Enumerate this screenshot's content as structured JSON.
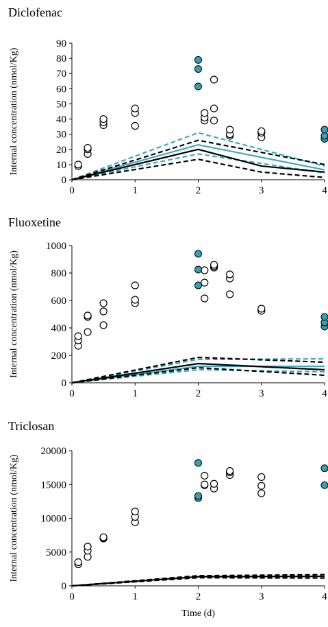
{
  "colors": {
    "accent": "#3fa9bd",
    "accent_fill": "#3a9fb4",
    "black": "#000000"
  },
  "chart_data": [
    {
      "type": "scatter",
      "title": "Diclofenac",
      "xlabel": "",
      "ylabel": "Internal  concentration  (nmol/Kg)",
      "xlim": [
        0,
        4
      ],
      "ylim": [
        0,
        90
      ],
      "xticks": [
        "0",
        "1",
        "2",
        "3",
        "4"
      ],
      "yticks": [
        "0",
        "10",
        "20",
        "30",
        "40",
        "50",
        "60",
        "70",
        "80",
        "90"
      ],
      "open_points": [
        [
          0.1,
          9
        ],
        [
          0.1,
          10
        ],
        [
          0.25,
          17
        ],
        [
          0.25,
          20
        ],
        [
          0.25,
          21
        ],
        [
          0.5,
          36
        ],
        [
          0.5,
          38
        ],
        [
          0.5,
          40
        ],
        [
          1,
          35.5
        ],
        [
          1,
          44
        ],
        [
          1,
          47
        ],
        [
          2.1,
          39
        ],
        [
          2.1,
          41
        ],
        [
          2.1,
          44
        ],
        [
          2.25,
          39
        ],
        [
          2.25,
          47
        ],
        [
          2.25,
          66
        ],
        [
          2.5,
          29
        ],
        [
          2.5,
          30
        ],
        [
          2.5,
          33
        ],
        [
          3,
          28
        ],
        [
          3,
          31
        ],
        [
          3,
          32
        ]
      ],
      "filled_points": [
        [
          2,
          61.5
        ],
        [
          2,
          73
        ],
        [
          2,
          79
        ],
        [
          4,
          27
        ],
        [
          4,
          29
        ],
        [
          4,
          33
        ]
      ],
      "lines": [
        {
          "color": "accent",
          "dashed": false,
          "x": [
            0,
            2,
            4
          ],
          "y": [
            0,
            23,
            6.5
          ]
        },
        {
          "color": "accent",
          "dashed": true,
          "x": [
            0,
            2,
            4
          ],
          "y": [
            0,
            31,
            9
          ]
        },
        {
          "color": "accent",
          "dashed": true,
          "x": [
            0,
            2,
            4
          ],
          "y": [
            0,
            17,
            4.5
          ]
        },
        {
          "color": "black",
          "dashed": false,
          "x": [
            0,
            2,
            3,
            4
          ],
          "y": [
            0,
            20,
            9,
            5
          ]
        },
        {
          "color": "black",
          "dashed": true,
          "x": [
            0,
            2,
            4
          ],
          "y": [
            0,
            26,
            10
          ]
        },
        {
          "color": "black",
          "dashed": true,
          "x": [
            0,
            2,
            3,
            4
          ],
          "y": [
            0,
            13.5,
            5,
            1.5
          ]
        }
      ]
    },
    {
      "type": "scatter",
      "title": "Fluoxetine",
      "xlabel": "",
      "ylabel": "Internal  concentration  (nmol/Kg)",
      "xlim": [
        0,
        4
      ],
      "ylim": [
        0,
        1000
      ],
      "xticks": [
        "0",
        "1",
        "2",
        "3",
        "4"
      ],
      "yticks": [
        "0",
        "200",
        "400",
        "600",
        "800",
        "1000"
      ],
      "open_points": [
        [
          0.1,
          270
        ],
        [
          0.1,
          310
        ],
        [
          0.1,
          340
        ],
        [
          0.25,
          370
        ],
        [
          0.25,
          480
        ],
        [
          0.25,
          490
        ],
        [
          0.5,
          420
        ],
        [
          0.5,
          520
        ],
        [
          0.5,
          580
        ],
        [
          1,
          580
        ],
        [
          1,
          605
        ],
        [
          1,
          710
        ],
        [
          2.1,
          615
        ],
        [
          2.1,
          730
        ],
        [
          2.1,
          820
        ],
        [
          2.25,
          840
        ],
        [
          2.25,
          850
        ],
        [
          2.25,
          860
        ],
        [
          2.5,
          645
        ],
        [
          2.5,
          760
        ],
        [
          2.5,
          790
        ],
        [
          3,
          525
        ],
        [
          3,
          540
        ]
      ],
      "filled_points": [
        [
          2,
          710
        ],
        [
          2,
          825
        ],
        [
          2,
          940
        ],
        [
          4,
          410
        ],
        [
          4,
          440
        ],
        [
          4,
          480
        ]
      ],
      "lines": [
        {
          "color": "accent",
          "dashed": false,
          "x": [
            0,
            2,
            4
          ],
          "y": [
            0,
            120,
            120
          ]
        },
        {
          "color": "accent",
          "dashed": true,
          "x": [
            0,
            2,
            4
          ],
          "y": [
            0,
            170,
            175
          ]
        },
        {
          "color": "accent",
          "dashed": true,
          "x": [
            0,
            2,
            4
          ],
          "y": [
            0,
            95,
            80
          ]
        },
        {
          "color": "black",
          "dashed": false,
          "x": [
            0,
            2,
            4
          ],
          "y": [
            0,
            140,
            95
          ]
        },
        {
          "color": "black",
          "dashed": true,
          "x": [
            0,
            2,
            4
          ],
          "y": [
            0,
            185,
            150
          ]
        },
        {
          "color": "black",
          "dashed": true,
          "x": [
            0,
            2,
            4
          ],
          "y": [
            0,
            110,
            55
          ]
        }
      ]
    },
    {
      "type": "scatter",
      "title": "Triclosan",
      "xlabel": "Time  (d)",
      "ylabel": "Internal  concentration  (nmol/Kg)",
      "xlim": [
        0,
        4
      ],
      "ylim": [
        0,
        20000
      ],
      "xticks": [
        "0",
        "1",
        "2",
        "3",
        "4"
      ],
      "yticks": [
        "0",
        "5000",
        "10000",
        "15000",
        "20000"
      ],
      "open_points": [
        [
          0.1,
          3200
        ],
        [
          0.1,
          3500
        ],
        [
          0.25,
          4300
        ],
        [
          0.25,
          5200
        ],
        [
          0.25,
          5800
        ],
        [
          0.5,
          7000
        ],
        [
          0.5,
          7100
        ],
        [
          0.5,
          7200
        ],
        [
          1,
          9400
        ],
        [
          1,
          10200
        ],
        [
          1,
          11000
        ],
        [
          2.1,
          14900
        ],
        [
          2.1,
          15000
        ],
        [
          2.1,
          16300
        ],
        [
          2.25,
          14400
        ],
        [
          2.25,
          15100
        ],
        [
          2.5,
          16400
        ],
        [
          2.5,
          16800
        ],
        [
          2.5,
          17000
        ],
        [
          3,
          13700
        ],
        [
          3,
          14800
        ],
        [
          3,
          16100
        ]
      ],
      "filled_points": [
        [
          2,
          13000
        ],
        [
          2,
          13300
        ],
        [
          2,
          18200
        ],
        [
          4,
          14900
        ],
        [
          4,
          17400
        ]
      ],
      "lines": [
        {
          "color": "black",
          "dashed": false,
          "x": [
            0,
            2,
            4
          ],
          "y": [
            0,
            1350,
            1400
          ]
        },
        {
          "color": "black",
          "dashed": true,
          "x": [
            0,
            2,
            4
          ],
          "y": [
            0,
            1500,
            1650
          ]
        },
        {
          "color": "black",
          "dashed": true,
          "x": [
            0,
            2,
            4
          ],
          "y": [
            0,
            1200,
            1150
          ]
        }
      ]
    }
  ]
}
